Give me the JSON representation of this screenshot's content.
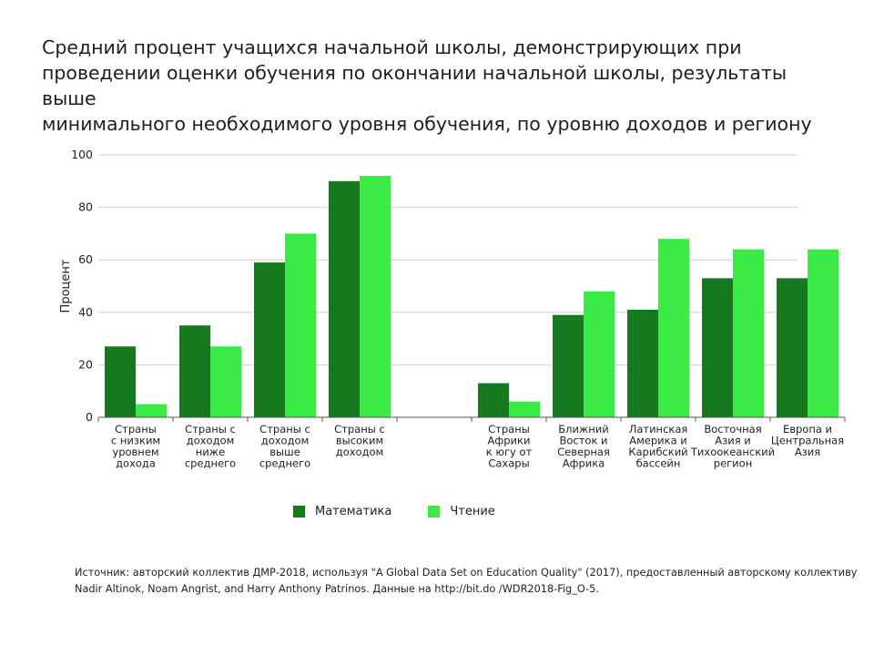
{
  "title": "Средний процент учащихся начальной школы, демонстрирующих при\nпроведении оценки обучения по окончании начальной школы, результаты выше\nминимального необходимого уровня обучения, по уровню доходов и региону",
  "source": {
    "line1": "Источник: авторский коллектив ДМР-2018, используя \"A Global Data Set on Education Quality\" (2017), предоставленный авторскому коллективу",
    "line2": "Nadir Altinok, Noam Angrist, and Harry Anthony Patrinos. Данные на http://bit.do /WDR2018-Fig_O-5."
  },
  "colors": {
    "math": "#157a1f",
    "reading": "#3bea45",
    "grid": "#d0d0d0",
    "axis": "#555555"
  },
  "chart_data": {
    "type": "bar",
    "ylabel": "Процент",
    "xlabel": "",
    "ylim": [
      0,
      100
    ],
    "yticks": [
      0,
      20,
      40,
      60,
      80,
      100
    ],
    "grid": true,
    "legend": "bottom",
    "categories": [
      "Страны\nс низким\nуровнем\nдохода",
      "Страны с\nдоходом\nниже\nсреднего",
      "Страны с\nдоходом\nвыше\nсреднего",
      "Страны с\nвысоким\nдоходом",
      "",
      "Страны\nАфрики\nк югу от\nСахары",
      "Ближний\nВосток и\nСеверная\nАфрика",
      "Латинская\nАмерика и\nКарибский\nбассейн",
      "Восточная\nАзия и\nТихоокеанский\nрегион",
      "Европа и\nЦентральная\nАзия"
    ],
    "series": [
      {
        "name": "Математика",
        "values": [
          27,
          35,
          59,
          90,
          null,
          13,
          39,
          41,
          53,
          53
        ]
      },
      {
        "name": "Чтение",
        "values": [
          5,
          27,
          70,
          92,
          null,
          6,
          48,
          68,
          64,
          64
        ]
      }
    ]
  }
}
